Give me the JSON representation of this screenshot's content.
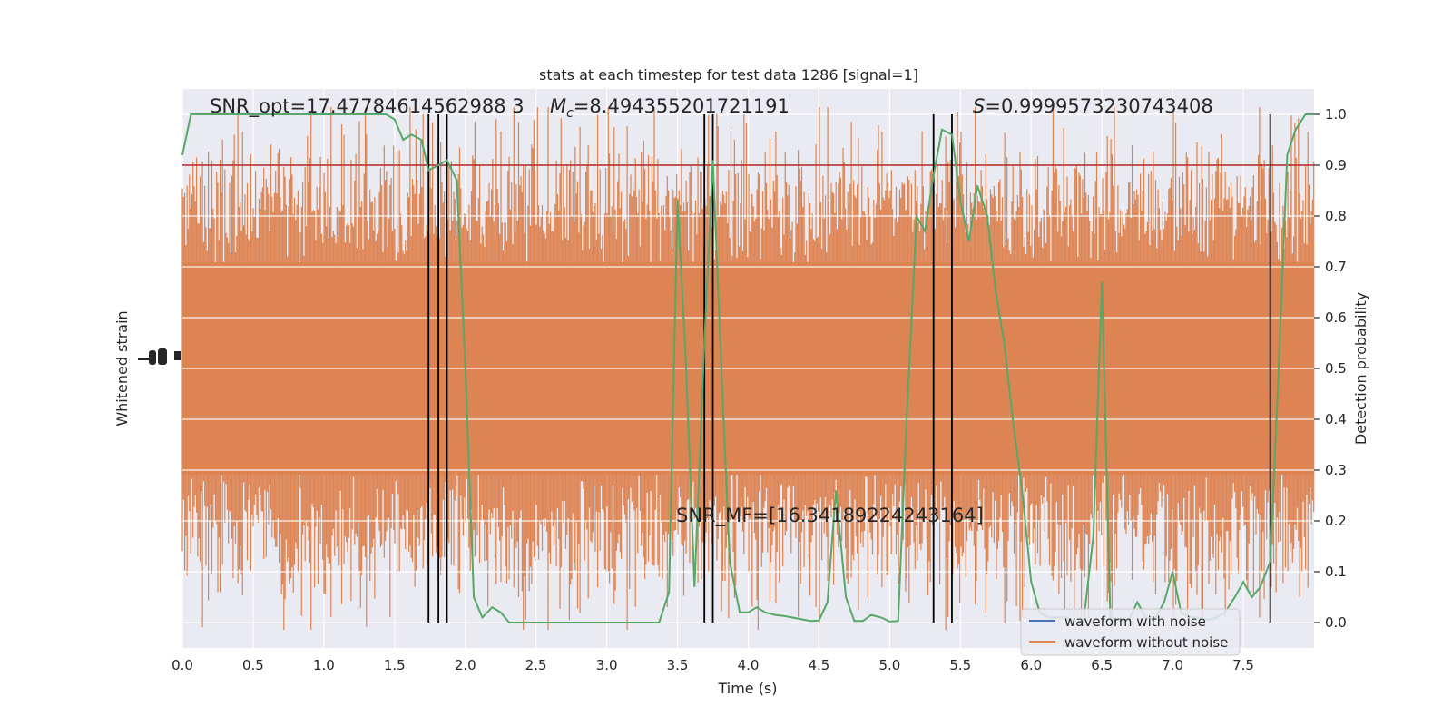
{
  "chart_data": {
    "type": "line",
    "title": "stats at each timestep for test data 1286 [signal=1]",
    "xlabel": "Time (s)",
    "ylabel_left": "Whitened strain",
    "ylabel_right": "Detection probability",
    "xlim": [
      0.0,
      8.0
    ],
    "ylim_right": [
      -0.05,
      1.05
    ],
    "grid": true,
    "legend_placement": "lower-right",
    "x_ticks": [
      "0.0",
      "0.5",
      "1.0",
      "1.5",
      "2.0",
      "2.5",
      "3.0",
      "3.5",
      "4.0",
      "4.5",
      "5.0",
      "5.5",
      "6.0",
      "6.5",
      "7.0",
      "7.5"
    ],
    "right_ticks": [
      "0.0",
      "0.1",
      "0.2",
      "0.3",
      "0.4",
      "0.5",
      "0.6",
      "0.7",
      "0.8",
      "0.9",
      "1.0"
    ],
    "annotations": {
      "snr_opt": "SNR_opt=17.47784614562988 3",
      "mc": "=8.494355201721191",
      "mc_symbol": "M",
      "mc_sub": "c",
      "s_value": "=0.9999573230743408",
      "s_symbol": "S",
      "snr_mf": "SNR_MF=[16.34189224243164]"
    },
    "threshold": 0.9,
    "vertical_lines": [
      1.74,
      1.81,
      1.87,
      3.69,
      3.75,
      5.31,
      5.44,
      7.69
    ],
    "series": [
      {
        "name": "waveform with noise",
        "color": "#4c72b0",
        "values": []
      },
      {
        "name": "waveform without noise",
        "color": "#dd8452",
        "values": []
      },
      {
        "color": "#55a868",
        "x": [
          0.0,
          0.06,
          0.12,
          0.19,
          0.25,
          0.31,
          0.37,
          0.44,
          0.5,
          0.56,
          0.62,
          0.69,
          0.75,
          0.81,
          0.87,
          0.94,
          1.0,
          1.06,
          1.12,
          1.19,
          1.25,
          1.31,
          1.37,
          1.44,
          1.5,
          1.56,
          1.62,
          1.69,
          1.74,
          1.81,
          1.87,
          1.94,
          2.0,
          2.06,
          2.12,
          2.19,
          2.25,
          2.31,
          2.37,
          2.5,
          2.75,
          3.0,
          3.25,
          3.37,
          3.44,
          3.5,
          3.56,
          3.62,
          3.69,
          3.75,
          3.81,
          3.87,
          3.94,
          4.0,
          4.06,
          4.12,
          4.19,
          4.25,
          4.31,
          4.37,
          4.44,
          4.5,
          4.56,
          4.62,
          4.69,
          4.75,
          4.81,
          4.87,
          4.94,
          5.0,
          5.06,
          5.12,
          5.19,
          5.25,
          5.31,
          5.37,
          5.44,
          5.5,
          5.56,
          5.62,
          5.69,
          5.75,
          5.81,
          5.87,
          5.94,
          6.0,
          6.06,
          6.12,
          6.19,
          6.25,
          6.31,
          6.37,
          6.44,
          6.5,
          6.56,
          6.62,
          6.69,
          6.75,
          6.81,
          6.87,
          6.94,
          7.0,
          7.06,
          7.12,
          7.19,
          7.25,
          7.31,
          7.37,
          7.44,
          7.5,
          7.56,
          7.62,
          7.69,
          7.75,
          7.81,
          7.87,
          7.94,
          8.0
        ],
        "values": [
          0.92,
          1.0,
          1.0,
          1.0,
          1.0,
          1.0,
          1.0,
          1.0,
          1.0,
          1.0,
          1.0,
          1.0,
          1.0,
          1.0,
          1.0,
          1.0,
          1.0,
          1.0,
          1.0,
          1.0,
          1.0,
          1.0,
          1.0,
          1.0,
          0.99,
          0.95,
          0.96,
          0.95,
          0.89,
          0.9,
          0.91,
          0.87,
          0.5,
          0.05,
          0.01,
          0.03,
          0.02,
          0.0,
          0.0,
          0.0,
          0.0,
          0.0,
          0.0,
          0.0,
          0.06,
          0.83,
          0.51,
          0.07,
          0.55,
          0.91,
          0.5,
          0.12,
          0.02,
          0.02,
          0.03,
          0.02,
          0.015,
          0.013,
          0.01,
          0.007,
          0.003,
          0.004,
          0.04,
          0.26,
          0.05,
          0.003,
          0.003,
          0.015,
          0.01,
          0.002,
          0.003,
          0.4,
          0.8,
          0.77,
          0.88,
          0.97,
          0.96,
          0.83,
          0.75,
          0.86,
          0.8,
          0.65,
          0.55,
          0.4,
          0.25,
          0.08,
          0.02,
          0.01,
          0.01,
          0.01,
          0.0,
          0.0,
          0.17,
          0.67,
          0.01,
          0.005,
          0.005,
          0.04,
          0.01,
          0.005,
          0.04,
          0.1,
          0.02,
          0.01,
          0.01,
          0.005,
          0.01,
          0.02,
          0.05,
          0.08,
          0.05,
          0.07,
          0.12,
          0.5,
          0.92,
          0.97,
          1.0,
          1.0
        ]
      }
    ],
    "noise_amplitude_fraction_of_axis": 0.5
  }
}
